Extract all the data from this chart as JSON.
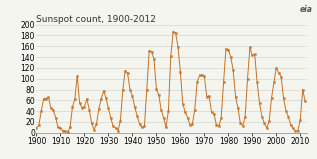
{
  "title": "Sunspot count, 1900-2012",
  "title_fontsize": 6.5,
  "line_color": "#c87020",
  "marker_color": "#c87020",
  "bg_color": "#f5f5f0",
  "grid_color": "#cccccc",
  "tick_label_fontsize": 5.5,
  "years": [
    1900,
    1901,
    1902,
    1903,
    1904,
    1905,
    1906,
    1907,
    1908,
    1909,
    1910,
    1911,
    1912,
    1913,
    1914,
    1915,
    1916,
    1917,
    1918,
    1919,
    1920,
    1921,
    1922,
    1923,
    1924,
    1925,
    1926,
    1927,
    1928,
    1929,
    1930,
    1931,
    1932,
    1933,
    1934,
    1935,
    1936,
    1937,
    1938,
    1939,
    1940,
    1941,
    1942,
    1943,
    1944,
    1945,
    1946,
    1947,
    1948,
    1949,
    1950,
    1951,
    1952,
    1953,
    1954,
    1955,
    1956,
    1957,
    1958,
    1959,
    1960,
    1961,
    1962,
    1963,
    1964,
    1965,
    1966,
    1967,
    1968,
    1969,
    1970,
    1971,
    1972,
    1973,
    1974,
    1975,
    1976,
    1977,
    1978,
    1979,
    1980,
    1981,
    1982,
    1983,
    1984,
    1985,
    1986,
    1987,
    1988,
    1989,
    1990,
    1991,
    1992,
    1993,
    1994,
    1995,
    1996,
    1997,
    1998,
    1999,
    2000,
    2001,
    2002,
    2003,
    2004,
    2005,
    2006,
    2007,
    2008,
    2009,
    2010,
    2011,
    2012
  ],
  "sunspots": [
    9,
    14,
    40,
    63,
    63,
    66,
    46,
    42,
    28,
    10,
    9,
    4,
    3,
    1,
    10,
    47,
    63,
    105,
    55,
    46,
    48,
    63,
    43,
    18,
    6,
    16,
    44,
    63,
    77,
    65,
    45,
    27,
    12,
    9,
    4,
    22,
    79,
    115,
    110,
    80,
    68,
    47,
    31,
    16,
    10,
    12,
    80,
    152,
    150,
    136,
    81,
    70,
    42,
    28,
    10,
    40,
    142,
    187,
    185,
    159,
    112,
    54,
    38,
    28,
    15,
    16,
    43,
    94,
    106,
    106,
    105,
    67,
    68,
    38,
    35,
    15,
    12,
    27,
    93,
    155,
    154,
    140,
    116,
    67,
    46,
    18,
    13,
    29,
    100,
    158,
    143,
    145,
    94,
    55,
    30,
    18,
    9,
    21,
    64,
    93,
    120,
    111,
    104,
    64,
    41,
    30,
    15,
    8,
    3,
    4,
    24,
    80,
    58
  ],
  "xlim": [
    1900,
    2013
  ],
  "ylim": [
    0,
    200
  ],
  "yticks": [
    0,
    20,
    40,
    60,
    80,
    100,
    120,
    140,
    160,
    180,
    200
  ],
  "xticks": [
    1900,
    1910,
    1920,
    1930,
    1940,
    1950,
    1960,
    1970,
    1980,
    1990,
    2000,
    2010
  ]
}
